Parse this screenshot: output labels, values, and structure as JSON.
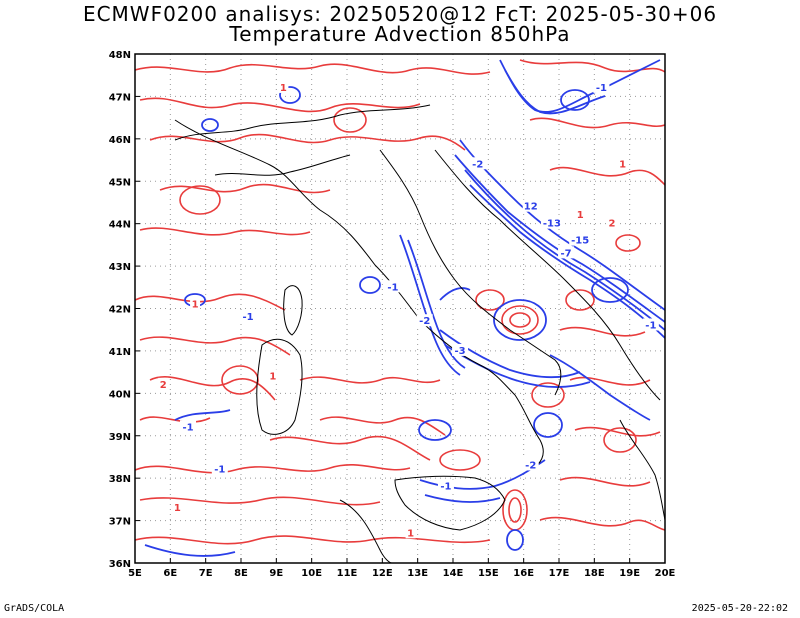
{
  "title": {
    "line1": "ECMWF0200 analisys: 20250520@12 FcT: 2025-05-30+06",
    "line2": "Temperature Advection 850hPa"
  },
  "footer": {
    "left": "GrADS/COLA",
    "right": "2025-05-20-22:02"
  },
  "map": {
    "lon_labels": [
      "5E",
      "6E",
      "7E",
      "8E",
      "9E",
      "10E",
      "11E",
      "12E",
      "13E",
      "14E",
      "15E",
      "16E",
      "17E",
      "18E",
      "19E",
      "20E"
    ],
    "lat_labels": [
      "48N",
      "47N",
      "46N",
      "45N",
      "44N",
      "43N",
      "42N",
      "41N",
      "40N",
      "39N",
      "38N",
      "37N",
      "36N"
    ],
    "lon_range": [
      5,
      20
    ],
    "lat_range": [
      36,
      48
    ],
    "colors": {
      "warm_advection": "#e83c3c",
      "cold_advection": "#2a3ee8",
      "coastline": "#000000",
      "grid": "#9a9a9a"
    },
    "contour_labels": [
      {
        "text": "1",
        "lon": 9.2,
        "lat": 47.2,
        "color": "#e83c3c"
      },
      {
        "text": "-2",
        "lon": 14.7,
        "lat": 45.4,
        "color": "#2a3ee8"
      },
      {
        "text": "12",
        "lon": 16.2,
        "lat": 44.4,
        "color": "#2a3ee8"
      },
      {
        "text": "-13",
        "lon": 16.8,
        "lat": 44.0,
        "color": "#2a3ee8"
      },
      {
        "text": "-15",
        "lon": 17.6,
        "lat": 43.6,
        "color": "#2a3ee8"
      },
      {
        "text": "-7",
        "lon": 17.2,
        "lat": 43.3,
        "color": "#2a3ee8"
      },
      {
        "text": "-1",
        "lon": 19.6,
        "lat": 41.6,
        "color": "#2a3ee8"
      },
      {
        "text": "2",
        "lon": 18.5,
        "lat": 44.0,
        "color": "#e83c3c"
      },
      {
        "text": "1",
        "lon": 17.6,
        "lat": 44.2,
        "color": "#e83c3c"
      },
      {
        "text": "-2",
        "lon": 13.2,
        "lat": 41.7,
        "color": "#2a3ee8"
      },
      {
        "text": "-1",
        "lon": 12.3,
        "lat": 42.5,
        "color": "#2a3ee8"
      },
      {
        "text": "-3",
        "lon": 14.2,
        "lat": 41.0,
        "color": "#2a3ee8"
      },
      {
        "text": "-2",
        "lon": 16.2,
        "lat": 38.3,
        "color": "#2a3ee8"
      },
      {
        "text": "-1",
        "lon": 13.8,
        "lat": 37.8,
        "color": "#2a3ee8"
      },
      {
        "text": "-1",
        "lon": 7.4,
        "lat": 38.2,
        "color": "#2a3ee8"
      },
      {
        "text": "-1",
        "lon": 6.5,
        "lat": 39.2,
        "color": "#2a3ee8"
      },
      {
        "text": "1",
        "lon": 6.7,
        "lat": 42.1,
        "color": "#e83c3c"
      },
      {
        "text": "2",
        "lon": 5.8,
        "lat": 40.2,
        "color": "#e83c3c"
      },
      {
        "text": "1",
        "lon": 6.2,
        "lat": 37.3,
        "color": "#e83c3c"
      },
      {
        "text": "1",
        "lon": 12.8,
        "lat": 36.7,
        "color": "#e83c3c"
      },
      {
        "text": "-1",
        "lon": 18.2,
        "lat": 47.2,
        "color": "#2a3ee8"
      },
      {
        "text": "1",
        "lon": 18.8,
        "lat": 45.4,
        "color": "#e83c3c"
      },
      {
        "text": "-1",
        "lon": 8.2,
        "lat": 41.8,
        "color": "#2a3ee8"
      },
      {
        "text": "1",
        "lon": 8.9,
        "lat": 40.4,
        "color": "#e83c3c"
      }
    ]
  }
}
